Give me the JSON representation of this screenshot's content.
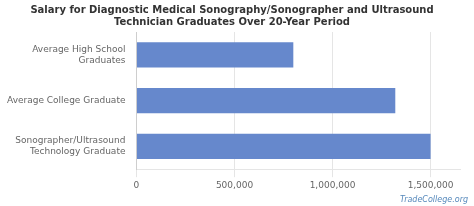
{
  "chart_data": {
    "type": "bar",
    "orientation": "horizontal",
    "title": "Salary for Diagnostic Medical Sonography/Sonographer and Ultrasound\nTechnician Graduates Over 20-Year Period",
    "categories": [
      "Sonographer/Ultrasound\nTechnology Graduate",
      "Average College Graduate",
      "Average High School\nGraduates"
    ],
    "values": [
      1500000,
      1320000,
      800000
    ],
    "color": "#6688cc",
    "xlim": [
      0,
      1650000
    ],
    "xticks": [
      0,
      {
        "value": 500000,
        "label": "500,000"
      },
      {
        "value": 1000000,
        "label": "1,000,000"
      },
      {
        "value": 1500000,
        "label": "1,500,000"
      }
    ],
    "grid": true,
    "annotations": [
      "TradeCollege.org"
    ]
  }
}
